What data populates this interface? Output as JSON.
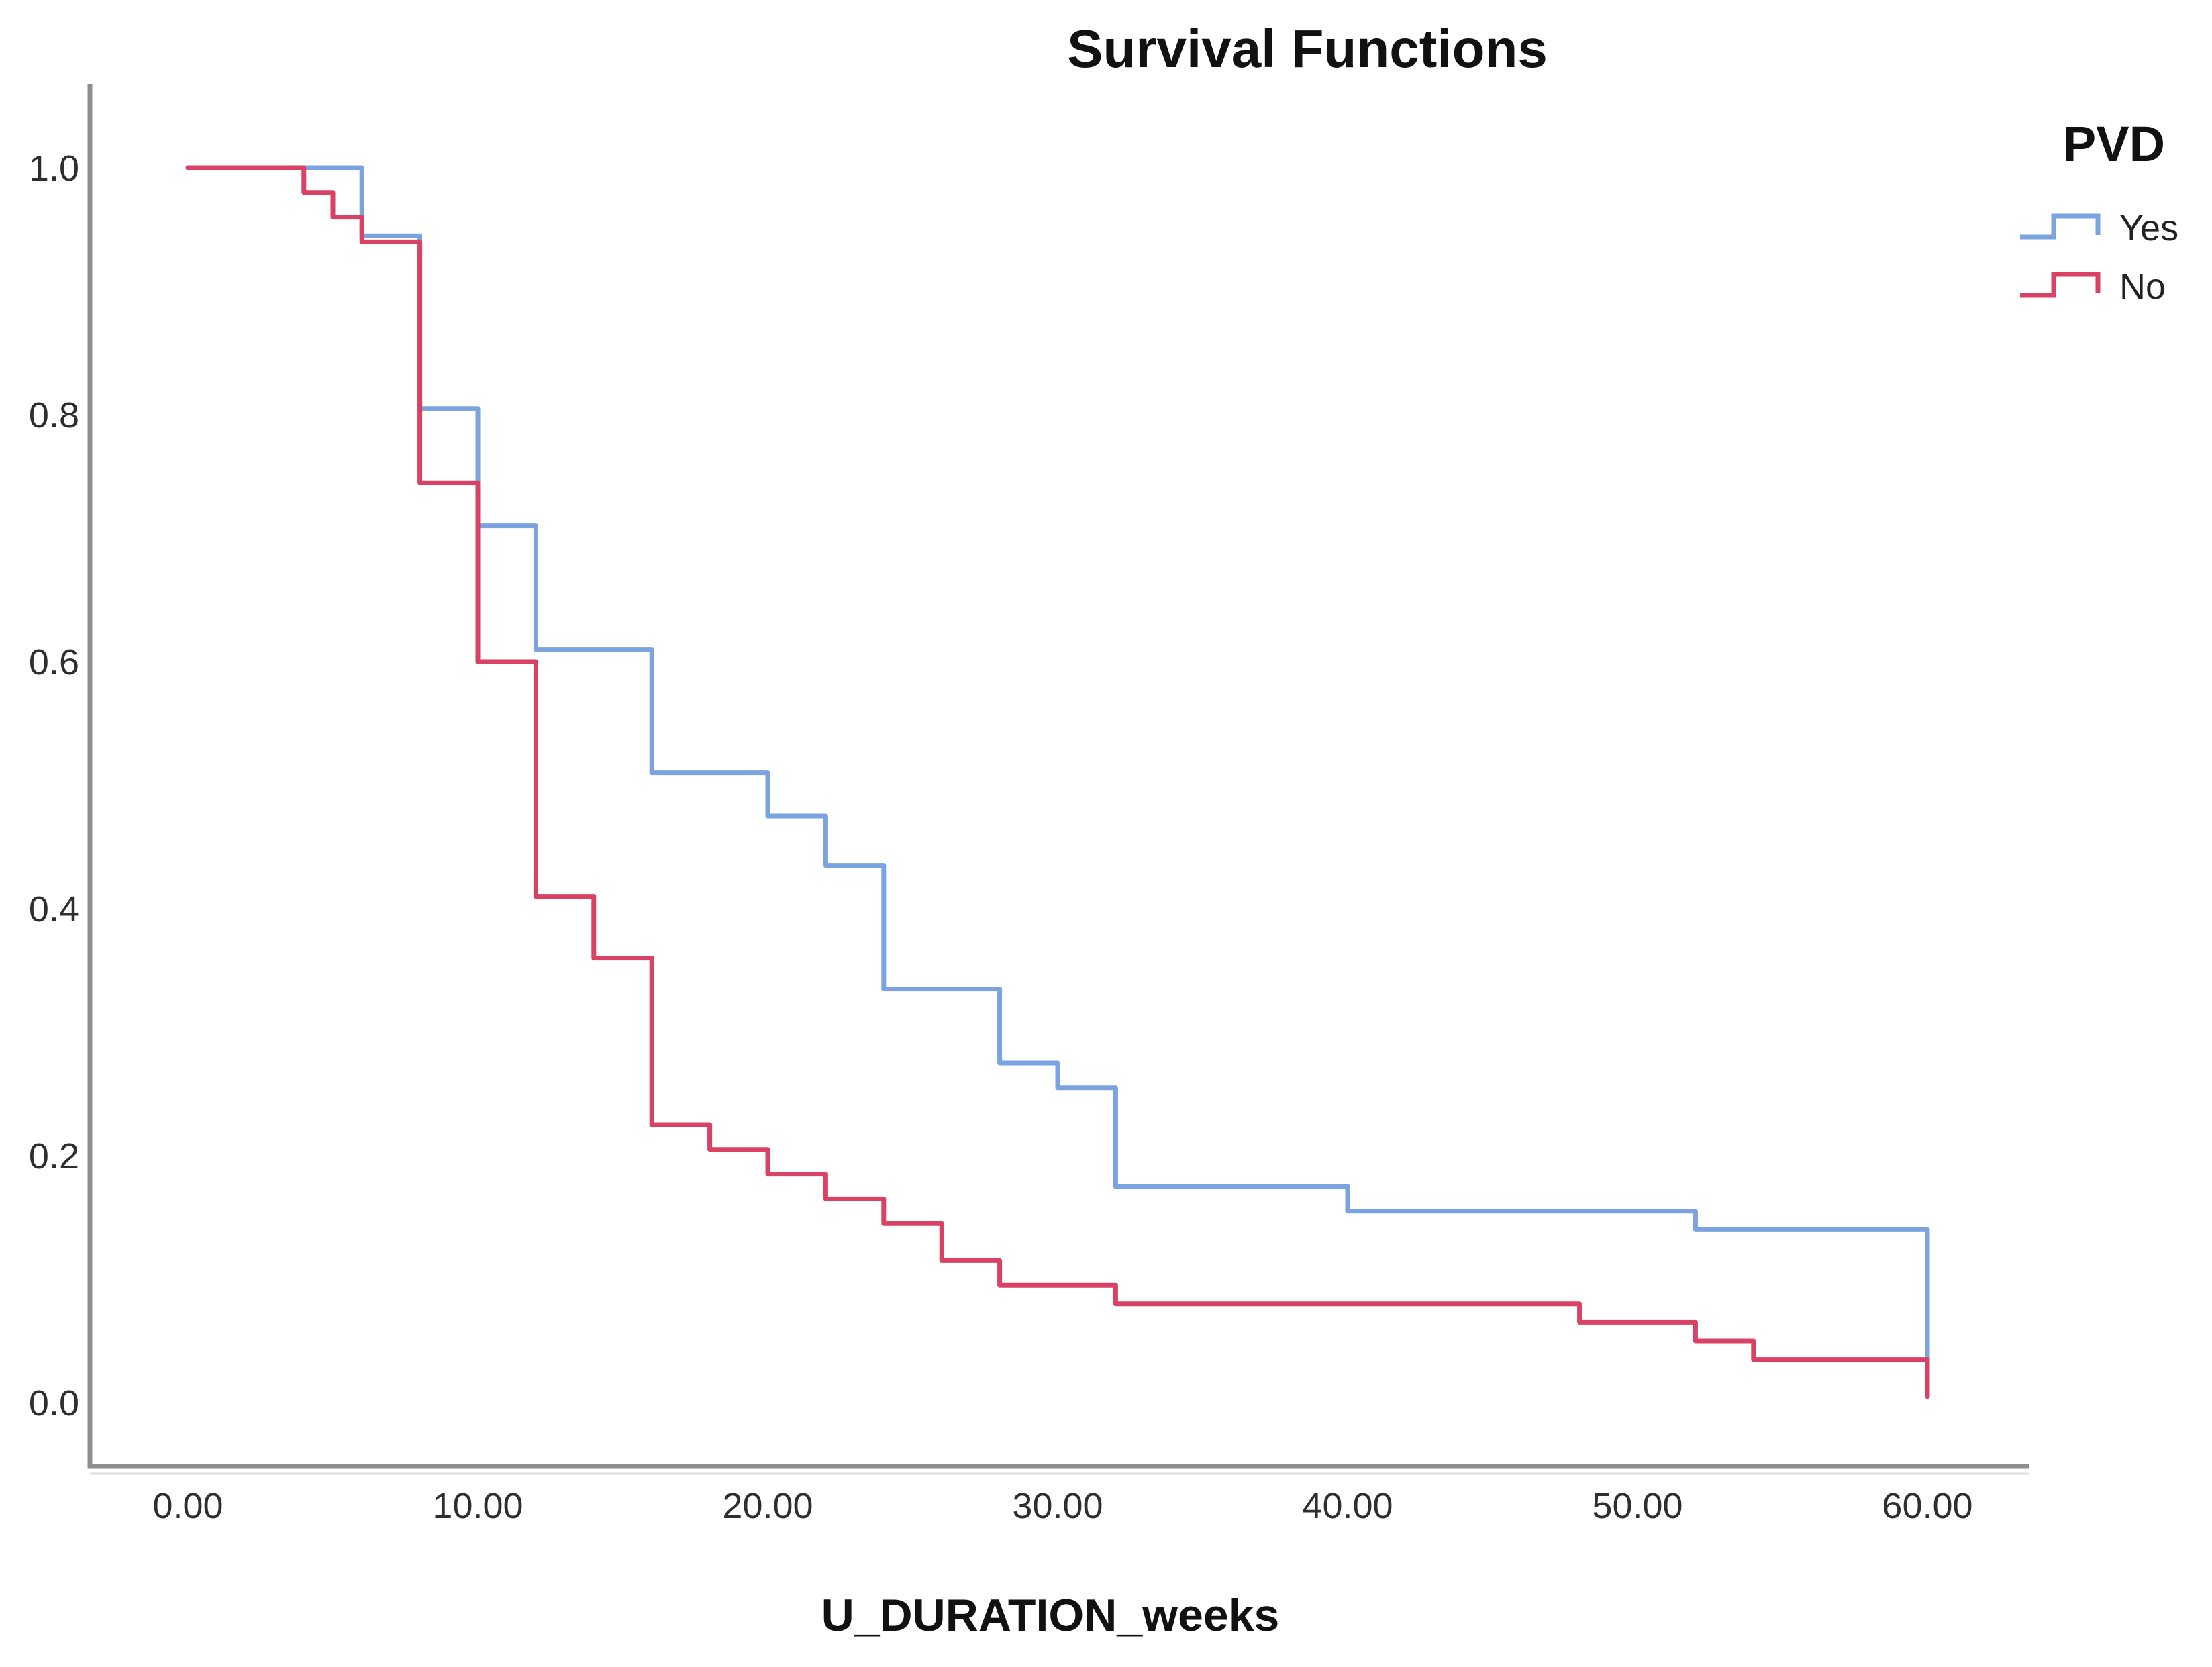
{
  "title": "Survival Functions",
  "legend": {
    "title": "PVD",
    "entries": [
      {
        "label": "Yes",
        "color": "#7AA3E0"
      },
      {
        "label": "No",
        "color": "#D94265"
      }
    ]
  },
  "axes": {
    "x": {
      "label": "U_DURATION_weeks",
      "tick_labels": [
        "0.00",
        "10.00",
        "20.00",
        "30.00",
        "40.00",
        "50.00",
        "60.00"
      ],
      "tick_values": [
        0,
        10,
        20,
        30,
        40,
        50,
        60
      ],
      "range": [
        0,
        60
      ]
    },
    "y": {
      "label": "",
      "tick_labels": [
        "0.0",
        "0.2",
        "0.4",
        "0.6",
        "0.8",
        "1.0"
      ],
      "tick_values": [
        0,
        0.2,
        0.4,
        0.6,
        0.8,
        1.0
      ],
      "range": [
        0,
        1
      ]
    }
  },
  "chart_data": {
    "type": "line",
    "subtype": "kaplan-meier-step",
    "title": "Survival Functions",
    "xlabel": "U_DURATION_weeks",
    "ylabel": "",
    "xlim": [
      0,
      60
    ],
    "ylim": [
      0,
      1
    ],
    "grid": false,
    "legend_position": "top-right",
    "legend_title": "PVD",
    "series": [
      {
        "name": "Yes",
        "color": "#7AA3E0",
        "steps": [
          [
            0,
            1.0
          ],
          [
            6,
            0.945
          ],
          [
            8,
            0.805
          ],
          [
            10,
            0.71
          ],
          [
            12,
            0.61
          ],
          [
            16,
            0.51
          ],
          [
            20,
            0.475
          ],
          [
            22,
            0.435
          ],
          [
            24,
            0.335
          ],
          [
            28,
            0.275
          ],
          [
            30,
            0.255
          ],
          [
            32,
            0.175
          ],
          [
            40,
            0.155
          ],
          [
            52,
            0.14
          ],
          [
            60,
            0.035
          ]
        ]
      },
      {
        "name": "No",
        "color": "#D94265",
        "steps": [
          [
            0,
            1.0
          ],
          [
            4,
            0.98
          ],
          [
            5,
            0.96
          ],
          [
            6,
            0.94
          ],
          [
            8,
            0.745
          ],
          [
            10,
            0.6
          ],
          [
            12,
            0.41
          ],
          [
            14,
            0.36
          ],
          [
            16,
            0.225
          ],
          [
            18,
            0.205
          ],
          [
            20,
            0.185
          ],
          [
            22,
            0.165
          ],
          [
            24,
            0.145
          ],
          [
            26,
            0.115
          ],
          [
            28,
            0.095
          ],
          [
            32,
            0.08
          ],
          [
            48,
            0.065
          ],
          [
            52,
            0.05
          ],
          [
            54,
            0.035
          ],
          [
            60,
            0.005
          ]
        ]
      }
    ]
  },
  "colors": {
    "axis": "#8e8e8e",
    "axis_shadow": "#dcdcdc",
    "tick_label": "#2e2e2e",
    "title": "#111111",
    "background": "#ffffff"
  }
}
